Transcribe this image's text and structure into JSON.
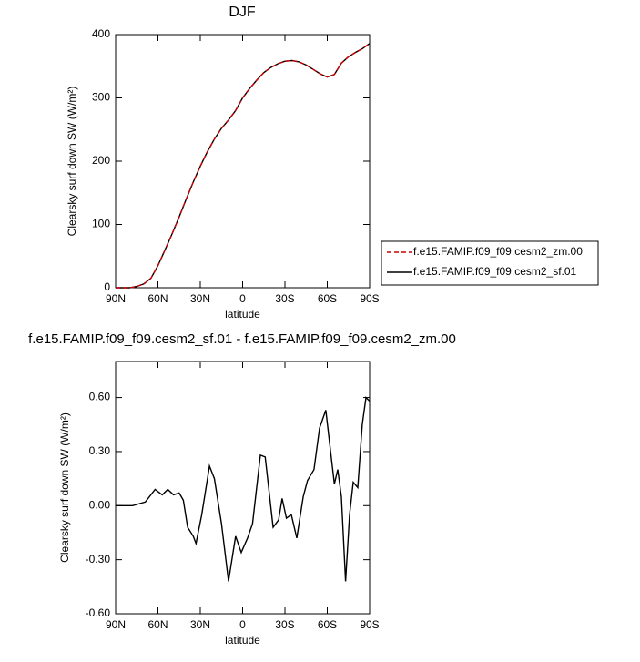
{
  "chart_data": [
    {
      "type": "line",
      "title": "DJF",
      "ylabel": "Clearsky surf down SW (W/m²)",
      "xlabel": "latitude",
      "x": [
        90,
        85,
        80,
        75,
        70,
        65,
        60,
        55,
        50,
        45,
        40,
        35,
        30,
        25,
        20,
        15,
        10,
        5,
        0,
        -5,
        -10,
        -15,
        -20,
        -25,
        -30,
        -35,
        -40,
        -45,
        -50,
        -55,
        -60,
        -65,
        -70,
        -75,
        -80,
        -85,
        -90
      ],
      "series": [
        {
          "name": "f.e15.FAMIP.f09_f09.cesm2_zm.00",
          "color": "#cc0000",
          "dash": true,
          "values": [
            0,
            0,
            0,
            2,
            6,
            15,
            35,
            60,
            85,
            112,
            140,
            167,
            192,
            215,
            235,
            252,
            265,
            280,
            300,
            315,
            328,
            340,
            348,
            354,
            358,
            359,
            357,
            352,
            345,
            338,
            333,
            337,
            355,
            365,
            372,
            378,
            386
          ]
        },
        {
          "name": "f.e15.FAMIP.f09_f09.cesm2_sf.01",
          "color": "#000000",
          "dash": false,
          "values": [
            0,
            0,
            0,
            2,
            6,
            15,
            35,
            60,
            85,
            112,
            140,
            167,
            192,
            215,
            235,
            252,
            265,
            280,
            300,
            315,
            328,
            340,
            348,
            354,
            358,
            359,
            357,
            352,
            345,
            338,
            333,
            337,
            355,
            365,
            372,
            378,
            386
          ]
        }
      ],
      "xlim": [
        90,
        -90
      ],
      "xticks": [
        {
          "value": 90,
          "label": "90N"
        },
        {
          "value": 60,
          "label": "60N"
        },
        {
          "value": 30,
          "label": "30N"
        },
        0,
        {
          "value": -30,
          "label": "30S"
        },
        {
          "value": -60,
          "label": "60S"
        },
        {
          "value": -90,
          "label": "90S"
        }
      ],
      "ylim": [
        0,
        400
      ],
      "yticks": [
        0,
        100,
        200,
        300,
        400
      ],
      "legend": "right"
    },
    {
      "type": "line",
      "title": "f.e15.FAMIP.f09_f09.cesm2_sf.01 - f.e15.FAMIP.f09_f09.cesm2_zm.00",
      "ylabel": "Clearsky surf down SW (W/m²)",
      "xlabel": "latitude",
      "x": [
        90,
        78,
        69,
        62,
        57,
        53,
        49,
        45,
        42,
        39,
        35,
        33,
        29,
        23.5,
        20,
        15,
        10,
        5,
        1,
        -3.5,
        -7,
        -12.6,
        -16,
        -21.6,
        -25.5,
        -28,
        -31,
        -34.5,
        -38.4,
        -43,
        -46,
        -50.6,
        -54.5,
        -59,
        -61.6,
        -65,
        -67.4,
        -70,
        -73,
        -75.8,
        -78.4,
        -81.6,
        -84.8,
        -87.4,
        -90
      ],
      "series": [
        {
          "color": "#000000",
          "dash": false,
          "values": [
            0,
            0,
            0.02,
            0.09,
            0.06,
            0.09,
            0.06,
            0.07,
            0.03,
            -0.12,
            -0.17,
            -0.21,
            -0.05,
            0.22,
            0.15,
            -0.1,
            -0.42,
            -0.17,
            -0.26,
            -0.18,
            -0.1,
            0.28,
            0.27,
            -0.12,
            -0.08,
            0.04,
            -0.07,
            -0.05,
            -0.18,
            0.05,
            0.14,
            0.2,
            0.43,
            0.53,
            0.35,
            0.12,
            0.2,
            0.05,
            -0.42,
            -0.05,
            0.13,
            0.1,
            0.45,
            0.6,
            0.58
          ]
        }
      ],
      "xlim": [
        90,
        -90
      ],
      "xticks": [
        {
          "value": 90,
          "label": "90N"
        },
        {
          "value": 60,
          "label": "60N"
        },
        {
          "value": 30,
          "label": "30N"
        },
        0,
        {
          "value": -30,
          "label": "30S"
        },
        {
          "value": -60,
          "label": "60S"
        },
        {
          "value": -90,
          "label": "90S"
        }
      ],
      "ylim": [
        -0.6,
        0.8
      ],
      "yticks": [
        {
          "value": -0.6,
          "label": "-0.60"
        },
        {
          "value": -0.3,
          "label": "-0.30"
        },
        {
          "value": 0,
          "label": "0.00"
        },
        {
          "value": 0.3,
          "label": "0.30"
        },
        {
          "value": 0.6,
          "label": "0.60"
        }
      ]
    }
  ]
}
